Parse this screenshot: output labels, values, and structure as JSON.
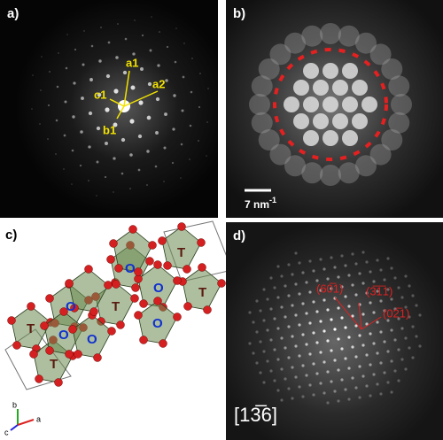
{
  "panels": [
    {
      "label": "a)",
      "annotations": [
        "a1",
        "a2",
        "b1",
        "c1"
      ]
    },
    {
      "label": "b)",
      "scale_bar": "7 nm",
      "scale_bar_exponent": "-1"
    },
    {
      "label": "c)",
      "polyhedra_labels": [
        "T",
        "T",
        "T",
        "T",
        "T",
        "O",
        "O",
        "O",
        "O",
        "O",
        "O"
      ],
      "axes": [
        "b",
        "a",
        "c"
      ]
    },
    {
      "label": "d)",
      "planes": [
        "(60̅1)",
        "(3̅1̅1)",
        "(02̅1)"
      ],
      "zone_axis": "[13̅6]"
    }
  ]
}
